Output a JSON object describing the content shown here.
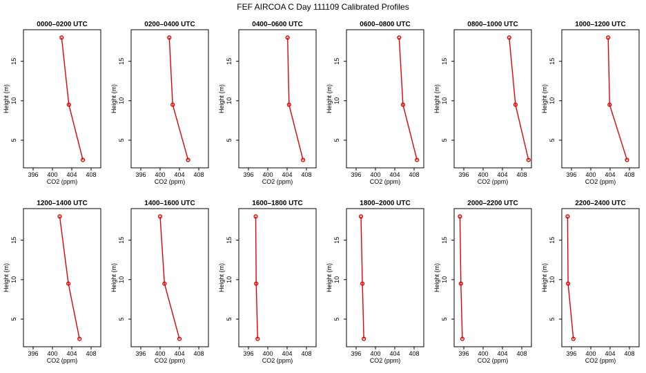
{
  "title": "FEF AIRCOA C  Day 111109  Calibrated Profiles",
  "colors": {
    "series": "#e00000",
    "axis": "#000000",
    "background": "#ffffff"
  },
  "chart_data": {
    "type": "line",
    "xlabel": "CO2 (ppm)",
    "ylabel": "Height (m)",
    "xlim": [
      394,
      410
    ],
    "ylim": [
      1.5,
      19.0
    ],
    "xticks": [
      396,
      400,
      404,
      408
    ],
    "yticks": [
      5,
      10,
      15
    ],
    "heights": [
      18,
      9.5,
      2.5
    ],
    "panels": [
      {
        "title": "0000–0200 UTC",
        "co2": [
          401.9,
          403.4,
          406.3
        ]
      },
      {
        "title": "0200–0400 UTC",
        "co2": [
          401.9,
          402.6,
          405.8
        ]
      },
      {
        "title": "0400–0600 UTC",
        "co2": [
          404.1,
          404.4,
          407.3
        ]
      },
      {
        "title": "0600–0800 UTC",
        "co2": [
          404.9,
          405.7,
          408.6
        ]
      },
      {
        "title": "0800–1000 UTC",
        "co2": [
          405.4,
          406.7,
          409.4
        ]
      },
      {
        "title": "1000–1200 UTC",
        "co2": [
          403.6,
          403.9,
          407.5
        ]
      },
      {
        "title": "1200–1400 UTC",
        "co2": [
          401.5,
          403.3,
          405.6
        ]
      },
      {
        "title": "1400–1600 UTC",
        "co2": [
          400.0,
          400.9,
          404.0
        ]
      },
      {
        "title": "1600–1800 UTC",
        "co2": [
          397.5,
          397.6,
          397.9
        ]
      },
      {
        "title": "1800–2000 UTC",
        "co2": [
          397.0,
          397.3,
          397.6
        ]
      },
      {
        "title": "2000–2200 UTC",
        "co2": [
          395.2,
          395.4,
          395.7
        ]
      },
      {
        "title": "2200–2400 UTC",
        "co2": [
          395.2,
          395.3,
          396.4
        ]
      }
    ]
  }
}
